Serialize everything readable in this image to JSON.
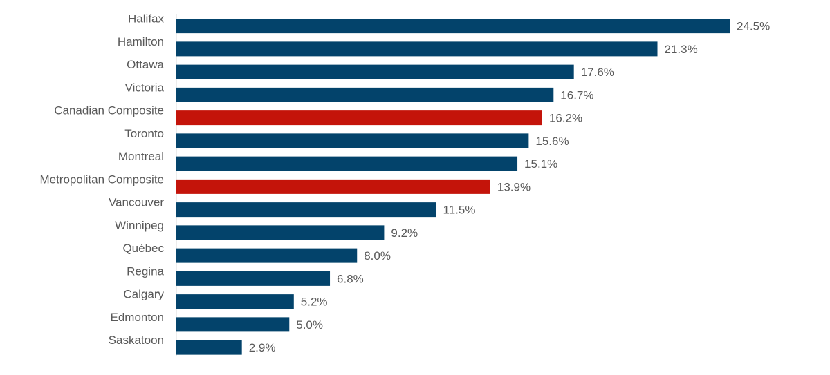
{
  "chart_data": {
    "type": "bar",
    "orientation": "horizontal",
    "categories": [
      "Halifax",
      "Hamilton",
      "Ottawa",
      "Victoria",
      "Canadian Composite",
      "Toronto",
      "Montreal",
      "Metropolitan Composite",
      "Vancouver",
      "Winnipeg",
      "Québec",
      "Regina",
      "Calgary",
      "Edmonton",
      "Saskatoon"
    ],
    "values": [
      24.5,
      21.3,
      17.6,
      16.7,
      16.2,
      15.6,
      15.1,
      13.9,
      11.5,
      9.2,
      8.0,
      6.8,
      5.2,
      5.0,
      2.9
    ],
    "value_labels": [
      "24.5%",
      "21.3%",
      "17.6%",
      "16.7%",
      "16.2%",
      "15.6%",
      "15.1%",
      "13.9%",
      "11.5%",
      "9.2%",
      "8.0%",
      "6.8%",
      "5.2%",
      "5.0%",
      "2.9%"
    ],
    "highlighted": [
      "Canadian Composite",
      "Metropolitan Composite"
    ],
    "colors": {
      "default": "#03436b",
      "highlight": "#c4140a"
    },
    "unit": "%",
    "title": "",
    "xlabel": "",
    "ylabel": "",
    "xlim": [
      0,
      24.5
    ],
    "grid": false,
    "legend": "none"
  }
}
